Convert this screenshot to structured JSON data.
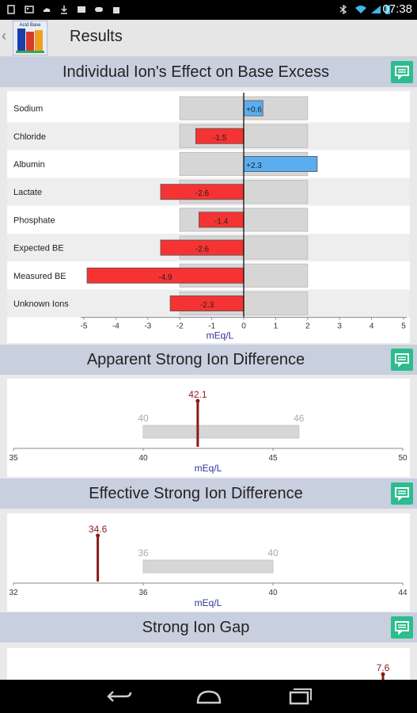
{
  "status_bar": {
    "time": "07:38"
  },
  "action_bar": {
    "back_glyph": "‹",
    "title": "Results",
    "app_icon_text": "Acid Base"
  },
  "sections": {
    "be": {
      "title": "Individual Ion's Effect on Base Excess"
    },
    "asid": {
      "title": "Apparent Strong Ion Difference"
    },
    "esid": {
      "title": "Effective Strong Ion Difference"
    },
    "sig": {
      "title": "Strong Ion Gap"
    }
  },
  "chart_data": [
    {
      "type": "bar",
      "orientation": "horizontal",
      "categories": [
        "Sodium",
        "Chloride",
        "Albumin",
        "Lactate",
        "Phosphate",
        "Expected BE",
        "Measured BE",
        "Unknown Ions"
      ],
      "values": [
        0.6,
        -1.5,
        2.3,
        -2.6,
        -1.4,
        -2.6,
        -4.9,
        -2.3
      ],
      "labels": [
        "+0.6",
        "-1.5",
        "+2.3",
        "-2.6",
        "-1.4",
        "-2.6",
        "-4.9",
        "-2.3"
      ],
      "normal_range": [
        -2,
        2
      ],
      "xlim": [
        -5,
        5
      ],
      "xticks": [
        "-5",
        "-4",
        "-3",
        "-2",
        "-1",
        "0",
        "1",
        "2",
        "3",
        "4",
        "5"
      ],
      "xlabel": "mEq/L",
      "colors": {
        "positive": "#5aaef0",
        "negative": "#f53333",
        "range": "#d6d6d6"
      }
    },
    {
      "type": "range_marker",
      "value": 42.1,
      "value_label": "42.1",
      "normal_range": [
        40,
        46
      ],
      "range_labels": [
        "40",
        "46"
      ],
      "xlim": [
        35,
        50
      ],
      "xticks": [
        "35",
        "40",
        "45",
        "50"
      ],
      "xlabel": "mEq/L"
    },
    {
      "type": "range_marker",
      "value": 34.6,
      "value_label": "34.6",
      "normal_range": [
        36,
        40
      ],
      "range_labels": [
        "36",
        "40"
      ],
      "xlim": [
        32,
        44
      ],
      "xticks": [
        "32",
        "36",
        "40",
        "44"
      ],
      "xlabel": "mEq/L"
    },
    {
      "type": "range_marker",
      "value": 7.6,
      "value_label": "7.6"
    }
  ]
}
